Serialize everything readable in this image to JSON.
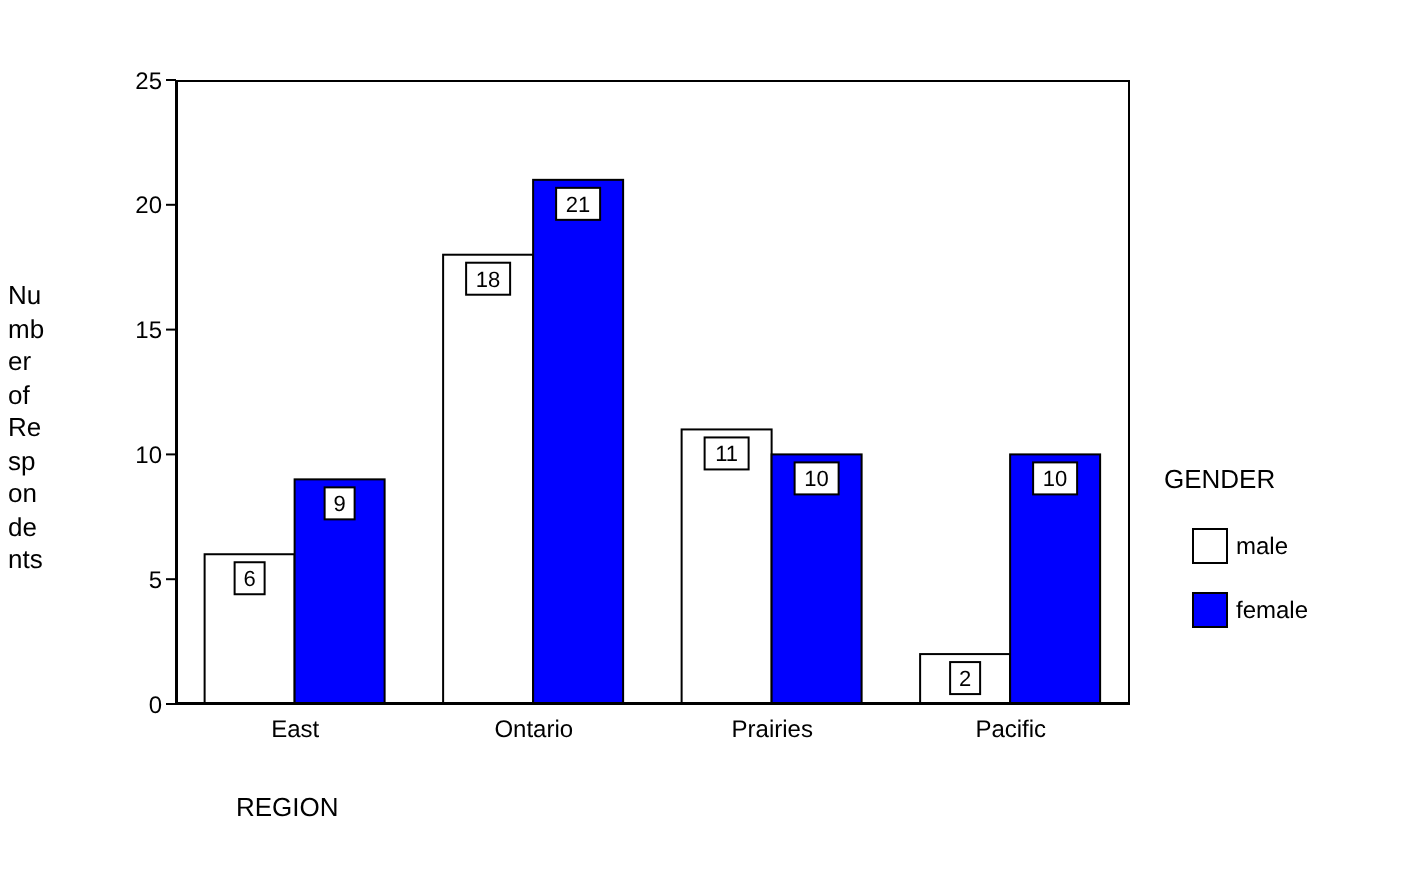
{
  "chart_data": {
    "type": "bar",
    "xlabel": "REGION",
    "ylabel": "Number of Respondents",
    "legend_title": "GENDER",
    "categories": [
      "East",
      "Ontario",
      "Prairies",
      "Pacific"
    ],
    "series": [
      {
        "name": "male",
        "color": "#ffffff",
        "values": [
          6,
          18,
          11,
          2
        ]
      },
      {
        "name": "female",
        "color": "#0000ff",
        "values": [
          9,
          21,
          10,
          10
        ]
      }
    ],
    "ylim": [
      0,
      25
    ],
    "yticks": [
      0,
      5,
      10,
      15,
      20,
      25
    ],
    "grid": false,
    "legend": "right",
    "data_labels": true
  }
}
